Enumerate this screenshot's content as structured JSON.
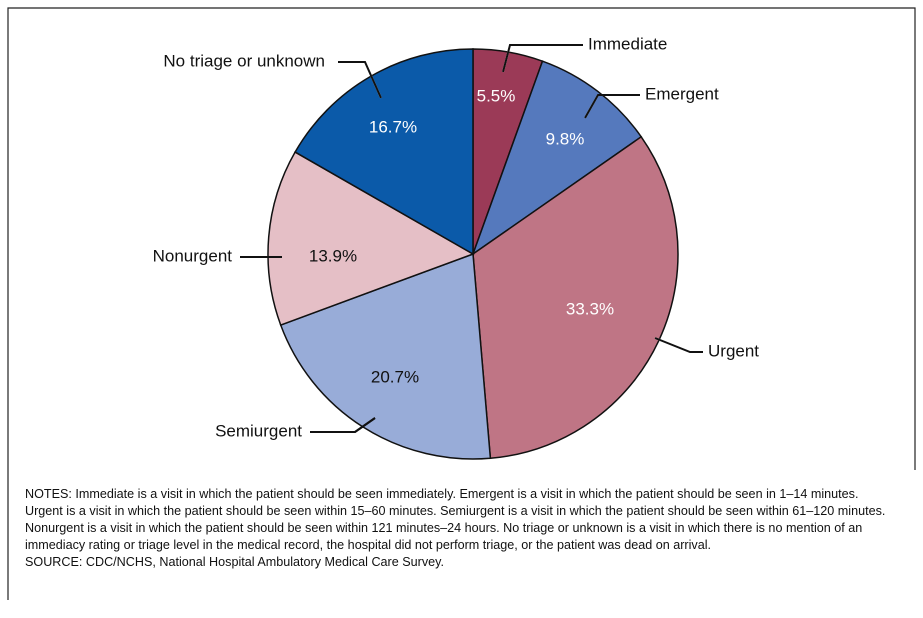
{
  "chart_data": {
    "type": "pie",
    "categories": [
      "Immediate",
      "Emergent",
      "Urgent",
      "Semiurgent",
      "Nonurgent",
      "No triage or unknown"
    ],
    "values": [
      5.5,
      9.8,
      33.3,
      20.7,
      13.9,
      16.7
    ],
    "value_labels": [
      "5.5%",
      "9.8%",
      "33.3%",
      "20.7%",
      "13.9%",
      "16.7%"
    ],
    "colors": [
      "#9b3a57",
      "#5579bd",
      "#bf7585",
      "#98acd8",
      "#e5bfc6",
      "#0b5aa9"
    ],
    "notes": "NOTES: Immediate is a visit in which the patient should be seen immediately. Emergent is a visit in which the patient should be seen in 1–14 minutes. Urgent is a visit in which the patient should be seen within 15–60 minutes. Semiurgent is a visit in which the patient should be seen within 61–120 minutes. Nonurgent is a visit in which the patient should be seen within 121 minutes–24 hours. No triage or unknown is a visit in which there is no mention of an immediacy rating or triage level in the medical record, the hospital did not perform triage, or the patient was dead on arrival.",
    "source": "SOURCE: CDC/NCHS, National Hospital Ambulatory Medical Care Survey."
  }
}
